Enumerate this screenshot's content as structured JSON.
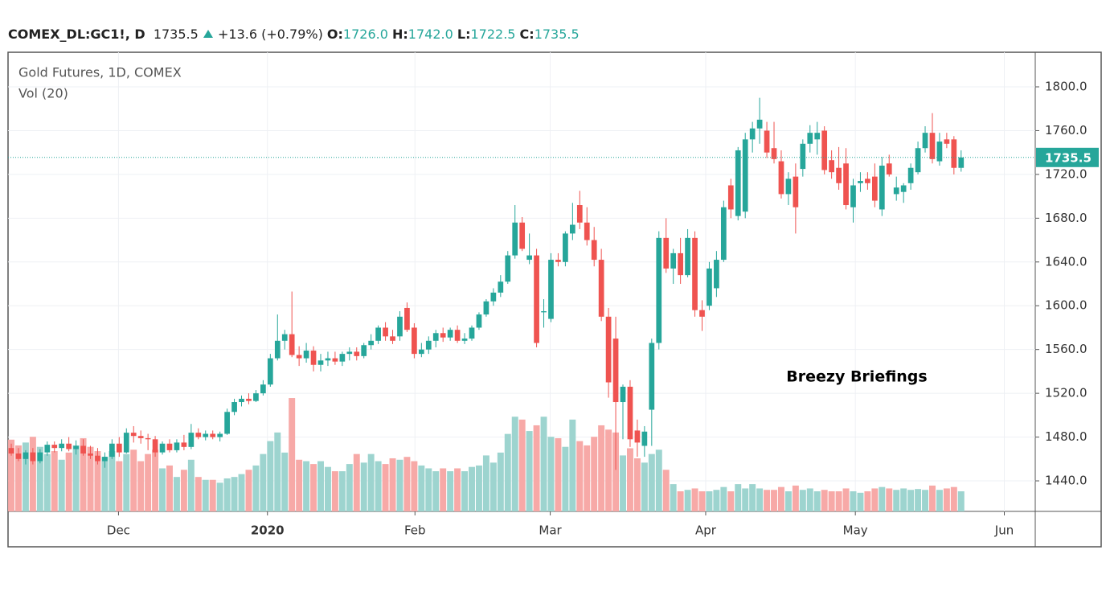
{
  "header": {
    "symbol": "COMEX_DL:GC1!, D",
    "last": "1735.5",
    "change": "+13.6 (+0.79%)",
    "ohlc": [
      {
        "label": "O:",
        "value": "1726.0"
      },
      {
        "label": "H:",
        "value": "1742.0"
      },
      {
        "label": "L:",
        "value": "1722.5"
      },
      {
        "label": "C:",
        "value": "1735.5"
      }
    ]
  },
  "chart_data": {
    "type": "candlestick",
    "title": "Gold Futures, 1D, COMEX",
    "subtitle": "Vol (20)",
    "annotation": "Breezy Briefings",
    "up_color": "#26a69a",
    "down_color": "#ef5350",
    "volume_up_color": "#9dd4cf",
    "volume_down_color": "#f7a9a7",
    "open": [
      1470,
      1465,
      1460,
      1466,
      1458,
      1466,
      1473,
      1470,
      1474,
      1469,
      1472,
      1465,
      1463,
      1458,
      1462,
      1474,
      1466,
      1484,
      1481,
      1479,
      1478,
      1466,
      1474,
      1468,
      1475,
      1471,
      1484,
      1480,
      1483,
      1480,
      1483,
      1503,
      1512,
      1515,
      1513,
      1520,
      1528,
      1552,
      1568,
      1574,
      1555,
      1552,
      1559,
      1546,
      1550,
      1552,
      1549,
      1556,
      1558,
      1554,
      1564,
      1568,
      1580,
      1572,
      1572,
      1598,
      1580,
      1556,
      1560,
      1568,
      1575,
      1571,
      1578,
      1568,
      1570,
      1580,
      1592,
      1604,
      1612,
      1622,
      1646,
      1676,
      1642,
      1646,
      1594,
      1588,
      1642,
      1640,
      1666,
      1692,
      1676,
      1660,
      1642,
      1590,
      1570,
      1512,
      1526,
      1486,
      1472,
      1505,
      1566,
      1662,
      1634,
      1648,
      1628,
      1662,
      1596,
      1600,
      1616,
      1642,
      1710,
      1682,
      1686,
      1752,
      1762,
      1760,
      1744,
      1732,
      1702,
      1718,
      1725,
      1748,
      1752,
      1760,
      1733,
      1726,
      1730,
      1690,
      1712,
      1716,
      1718,
      1688,
      1730,
      1702,
      1704,
      1712,
      1722,
      1744,
      1758,
      1732,
      1752,
      1752,
      1726
    ],
    "high": [
      1474,
      1470,
      1468,
      1470,
      1469,
      1476,
      1476,
      1478,
      1480,
      1477,
      1478,
      1472,
      1470,
      1466,
      1478,
      1480,
      1488,
      1490,
      1486,
      1483,
      1481,
      1476,
      1478,
      1478,
      1482,
      1492,
      1488,
      1486,
      1486,
      1485,
      1506,
      1515,
      1518,
      1520,
      1523,
      1532,
      1556,
      1592,
      1578,
      1613,
      1563,
      1566,
      1563,
      1556,
      1558,
      1558,
      1558,
      1562,
      1562,
      1566,
      1574,
      1582,
      1585,
      1578,
      1595,
      1603,
      1584,
      1566,
      1572,
      1578,
      1580,
      1580,
      1582,
      1575,
      1582,
      1594,
      1606,
      1616,
      1628,
      1650,
      1692,
      1681,
      1666,
      1652,
      1606,
      1648,
      1648,
      1668,
      1694,
      1705,
      1690,
      1672,
      1652,
      1598,
      1590,
      1528,
      1532,
      1496,
      1490,
      1570,
      1668,
      1680,
      1652,
      1662,
      1670,
      1668,
      1605,
      1640,
      1650,
      1696,
      1716,
      1745,
      1758,
      1768,
      1790,
      1768,
      1768,
      1742,
      1722,
      1730,
      1752,
      1765,
      1768,
      1764,
      1742,
      1745,
      1744,
      1716,
      1722,
      1722,
      1730,
      1736,
      1738,
      1718,
      1712,
      1730,
      1750,
      1764,
      1776,
      1758,
      1758,
      1755,
      1742
    ],
    "low": [
      1463,
      1458,
      1455,
      1455,
      1456,
      1463,
      1466,
      1467,
      1467,
      1464,
      1463,
      1460,
      1455,
      1452,
      1460,
      1462,
      1465,
      1475,
      1474,
      1468,
      1462,
      1464,
      1466,
      1466,
      1468,
      1469,
      1478,
      1477,
      1478,
      1476,
      1482,
      1500,
      1508,
      1510,
      1512,
      1518,
      1526,
      1550,
      1560,
      1553,
      1545,
      1548,
      1540,
      1540,
      1545,
      1546,
      1545,
      1550,
      1550,
      1552,
      1560,
      1565,
      1568,
      1565,
      1568,
      1576,
      1552,
      1553,
      1556,
      1562,
      1567,
      1568,
      1566,
      1565,
      1568,
      1578,
      1590,
      1600,
      1608,
      1620,
      1643,
      1650,
      1638,
      1562,
      1580,
      1585,
      1636,
      1636,
      1660,
      1670,
      1655,
      1636,
      1586,
      1516,
      1450,
      1478,
      1471,
      1462,
      1462,
      1472,
      1560,
      1630,
      1620,
      1620,
      1626,
      1590,
      1577,
      1596,
      1608,
      1640,
      1680,
      1678,
      1680,
      1740,
      1748,
      1735,
      1730,
      1698,
      1692,
      1666,
      1718,
      1740,
      1738,
      1720,
      1716,
      1706,
      1688,
      1676,
      1704,
      1706,
      1690,
      1682,
      1718,
      1696,
      1694,
      1706,
      1720,
      1740,
      1730,
      1728,
      1744,
      1720,
      1722.5
    ],
    "close": [
      1465,
      1460,
      1466,
      1458,
      1466,
      1473,
      1470,
      1474,
      1469,
      1472,
      1465,
      1463,
      1458,
      1462,
      1474,
      1466,
      1484,
      1481,
      1479,
      1478,
      1466,
      1474,
      1468,
      1475,
      1471,
      1484,
      1480,
      1483,
      1480,
      1483,
      1503,
      1512,
      1515,
      1513,
      1520,
      1528,
      1552,
      1568,
      1574,
      1555,
      1552,
      1559,
      1546,
      1550,
      1552,
      1549,
      1556,
      1558,
      1554,
      1564,
      1568,
      1580,
      1572,
      1568,
      1590,
      1578,
      1556,
      1560,
      1568,
      1575,
      1571,
      1578,
      1568,
      1570,
      1580,
      1592,
      1604,
      1612,
      1622,
      1646,
      1676,
      1652,
      1646,
      1566,
      1595,
      1642,
      1640,
      1666,
      1674,
      1676,
      1660,
      1642,
      1590,
      1530,
      1512,
      1526,
      1478,
      1475,
      1485,
      1566,
      1662,
      1634,
      1648,
      1628,
      1662,
      1596,
      1590,
      1634,
      1642,
      1690,
      1688,
      1742,
      1752,
      1762,
      1770,
      1740,
      1734,
      1702,
      1716,
      1690,
      1748,
      1758,
      1758,
      1724,
      1722,
      1712,
      1692,
      1710,
      1714,
      1712,
      1696,
      1728,
      1720,
      1708,
      1710,
      1726,
      1744,
      1758,
      1734,
      1750,
      1748,
      1726,
      1735.5
    ],
    "volume": [
      250,
      230,
      240,
      260,
      225,
      200,
      210,
      180,
      205,
      230,
      255,
      225,
      210,
      190,
      210,
      175,
      200,
      215,
      175,
      200,
      215,
      150,
      160,
      120,
      145,
      180,
      120,
      110,
      110,
      100,
      115,
      120,
      130,
      145,
      160,
      200,
      245,
      275,
      205,
      395,
      180,
      175,
      165,
      175,
      155,
      140,
      140,
      165,
      200,
      170,
      200,
      175,
      165,
      185,
      180,
      190,
      175,
      160,
      150,
      140,
      150,
      140,
      150,
      140,
      155,
      160,
      195,
      170,
      205,
      270,
      330,
      320,
      280,
      300,
      330,
      260,
      255,
      225,
      320,
      245,
      230,
      260,
      300,
      285,
      275,
      195,
      220,
      185,
      170,
      200,
      215,
      145,
      95,
      70,
      75,
      80,
      70,
      70,
      75,
      85,
      70,
      95,
      80,
      95,
      80,
      75,
      75,
      85,
      70,
      90,
      75,
      80,
      70,
      75,
      70,
      70,
      80,
      70,
      65,
      70,
      80,
      85,
      80,
      75,
      80,
      75,
      78,
      75,
      90,
      75,
      80,
      85,
      70
    ],
    "vlim": [
      0,
      1600
    ],
    "xlim": [
      -0.45,
      142.3
    ],
    "xticks": [
      {
        "value": 14.9,
        "label": "Dec"
      },
      {
        "value": 35.6,
        "label": "2020"
      },
      {
        "value": 56.1,
        "label": "Feb"
      },
      {
        "value": 74.9,
        "label": "Mar"
      },
      {
        "value": 96.5,
        "label": "Apr"
      },
      {
        "value": 117.3,
        "label": "May"
      },
      {
        "value": 138.0,
        "label": "Jun"
      }
    ],
    "ylim": [
      1412.1,
      1831.6
    ],
    "yticks": [
      {
        "value": 1440,
        "label": "1440.0"
      },
      {
        "value": 1480,
        "label": "1480.0"
      },
      {
        "value": 1520,
        "label": "1520.0"
      },
      {
        "value": 1560,
        "label": "1560.0"
      },
      {
        "value": 1600,
        "label": "1600.0"
      },
      {
        "value": 1640,
        "label": "1640.0"
      },
      {
        "value": 1680,
        "label": "1680.0"
      },
      {
        "value": 1720,
        "label": "1720.0"
      },
      {
        "value": 1760,
        "label": "1760.0"
      },
      {
        "value": 1800,
        "label": "1800.0"
      }
    ],
    "last_price": {
      "value": 1735.5,
      "label": "1735.5"
    },
    "grid": true
  }
}
